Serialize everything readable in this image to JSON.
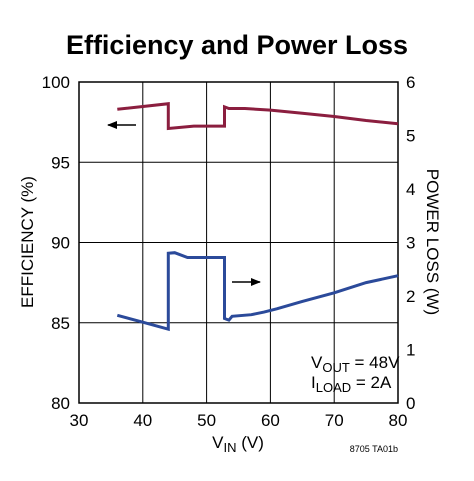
{
  "chart_data": {
    "type": "line",
    "title": "Efficiency and Power Loss",
    "xlabel": {
      "main": "V",
      "sub": "IN",
      "unit": " (V)"
    },
    "ylabel": "EFFICIENCY (%)",
    "y2label": "POWER LOSS (W)",
    "xlim": [
      30,
      80
    ],
    "ylim": [
      80,
      100
    ],
    "y2lim": [
      0,
      6
    ],
    "xticks": [
      "30",
      "40",
      "50",
      "60",
      "70",
      "80"
    ],
    "yticks": [
      "80",
      "85",
      "90",
      "95",
      "100"
    ],
    "y2ticks": [
      "0",
      "1",
      "2",
      "3",
      "4",
      "5",
      "6"
    ],
    "grid": true,
    "series": [
      {
        "axis": "left",
        "color": "#8b1e3f",
        "points": [
          [
            36,
            98.3
          ],
          [
            44,
            98.65
          ],
          [
            44,
            97.1
          ],
          [
            48,
            97.25
          ],
          [
            52.8,
            97.25
          ],
          [
            52.8,
            98.45
          ],
          [
            53.5,
            98.35
          ],
          [
            56,
            98.35
          ],
          [
            60,
            98.25
          ],
          [
            65,
            98.05
          ],
          [
            70,
            97.85
          ],
          [
            75,
            97.6
          ],
          [
            80,
            97.4
          ]
        ]
      },
      {
        "axis": "right",
        "color": "#2b4a9a",
        "points": [
          [
            36,
            1.64
          ],
          [
            40,
            1.51
          ],
          [
            44,
            1.38
          ],
          [
            44,
            2.8
          ],
          [
            45,
            2.81
          ],
          [
            47,
            2.72
          ],
          [
            50,
            2.72
          ],
          [
            52.8,
            2.72
          ],
          [
            52.8,
            1.58
          ],
          [
            53.5,
            1.55
          ],
          [
            54,
            1.62
          ],
          [
            57,
            1.65
          ],
          [
            59,
            1.7
          ],
          [
            61,
            1.76
          ],
          [
            65,
            1.9
          ],
          [
            70,
            2.06
          ],
          [
            75,
            2.25
          ],
          [
            80,
            2.38
          ]
        ]
      }
    ],
    "annotations": {
      "vout": {
        "main": "V",
        "sub": "OUT",
        "value": " = 48V"
      },
      "iload": {
        "main": "I",
        "sub": "LOAD",
        "value": " = 2A"
      },
      "left_arrow": "efficiency-to-left-axis",
      "right_arrow": "power-loss-to-right-axis"
    },
    "figure_code": "8705 TA01b"
  }
}
